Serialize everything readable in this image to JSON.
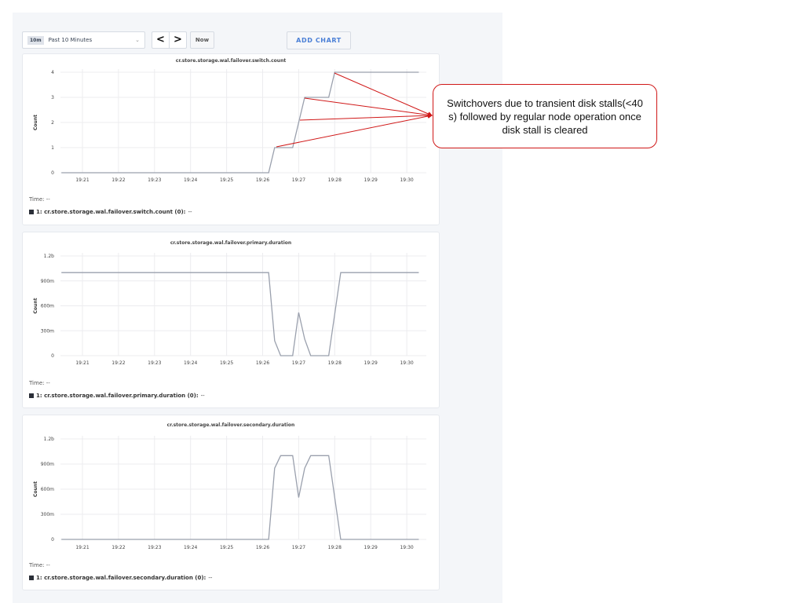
{
  "toolbar": {
    "range_badge": "10m",
    "range_label": "Past 10 Minutes",
    "prev_label": "<",
    "next_label": ">",
    "now_label": "Now",
    "add_chart_label": "ADD CHART"
  },
  "x_ticks": [
    "19:21",
    "19:22",
    "19:23",
    "19:24",
    "19:25",
    "19:26",
    "19:27",
    "19:28",
    "19:29",
    "19:30"
  ],
  "chart_data": [
    {
      "type": "line",
      "title": "cr.store.storage.wal.failover.switch.count",
      "ylabel": "Count",
      "yticks": [
        "0",
        "1",
        "2",
        "3",
        "4"
      ],
      "ylim": [
        0,
        4
      ],
      "time_label": "Time:",
      "time_value": "--",
      "legend": "1: cr.store.storage.wal.failover.switch.count (0):",
      "legend_value": "--",
      "series": [
        {
          "x": [
            "19:20:25",
            "19:26:10",
            "19:26:20",
            "19:26:50",
            "19:27:10",
            "19:27:50",
            "19:28:00",
            "19:30:20"
          ],
          "y": [
            0,
            0,
            1,
            1,
            3,
            3,
            4,
            4
          ]
        }
      ]
    },
    {
      "type": "line",
      "title": "cr.store.storage.wal.failover.primary.duration",
      "ylabel": "Count",
      "yticks": [
        "0",
        "300m",
        "600m",
        "900m",
        "1.2b"
      ],
      "ylim": [
        0,
        1.2
      ],
      "time_label": "Time:",
      "time_value": "--",
      "legend": "1: cr.store.storage.wal.failover.primary.duration (0):",
      "legend_value": "--",
      "series": [
        {
          "x": [
            "19:20:25",
            "19:26:10",
            "19:26:20",
            "19:26:30",
            "19:26:50",
            "19:27:00",
            "19:27:10",
            "19:27:20",
            "19:27:50",
            "19:28:00",
            "19:28:10",
            "19:30:20"
          ],
          "y": [
            1,
            1,
            0.18,
            0,
            0,
            0.52,
            0.2,
            0,
            0,
            0.5,
            1,
            1
          ]
        }
      ]
    },
    {
      "type": "line",
      "title": "cr.store.storage.wal.failover.secondary.duration",
      "ylabel": "Count",
      "yticks": [
        "0",
        "300m",
        "600m",
        "900m",
        "1.2b"
      ],
      "ylim": [
        0,
        1.2
      ],
      "time_label": "Time:",
      "time_value": "--",
      "legend": "1: cr.store.storage.wal.failover.secondary.duration (0):",
      "legend_value": "--",
      "series": [
        {
          "x": [
            "19:20:25",
            "19:26:10",
            "19:26:20",
            "19:26:30",
            "19:26:50",
            "19:27:00",
            "19:27:10",
            "19:27:20",
            "19:27:50",
            "19:28:00",
            "19:28:10",
            "19:30:20"
          ],
          "y": [
            0,
            0,
            0.85,
            1,
            1,
            0.5,
            0.85,
            1,
            1,
            0.5,
            0,
            0
          ]
        }
      ]
    }
  ],
  "annotation": {
    "text": "Switchovers due to transient disk stalls(<40 s) followed by regular node operation once disk stall is cleared",
    "color": "#d01818"
  },
  "colors": {
    "line": "#9aa0ad",
    "grid": "#ececef",
    "legend_swatch": "#2b2f38"
  }
}
